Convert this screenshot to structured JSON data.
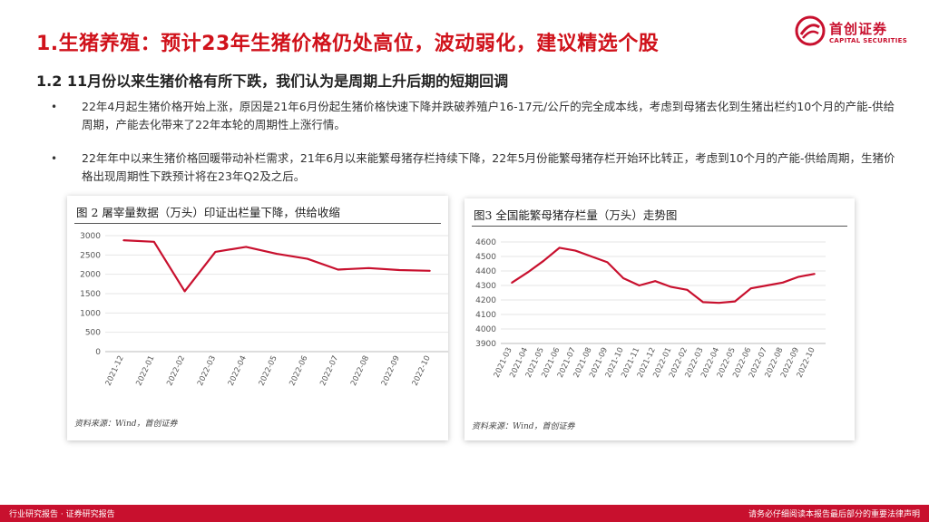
{
  "header": {
    "title": "1.生猪养殖：预计23年生猪价格仍处高位，波动弱化，建议精选个股",
    "subtitle": "1.2 11月份以来生猪价格有所下跌，我们认为是周期上升后期的短期回调"
  },
  "logo": {
    "name": "首创证券",
    "name_en": "CAPITAL SECURITIES",
    "icon": "capital-securities-logo",
    "color": "#c8102e"
  },
  "bullets": [
    {
      "marker": "•",
      "text": "22年4月起生猪价格开始上涨，原因是21年6月份起生猪价格快速下降并跌破养殖户16-17元/公斤的完全成本线，考虑到母猪去化到生猪出栏约10个月的产能-供给周期，产能去化带来了22年本轮的周期性上涨行情。"
    },
    {
      "marker": "•",
      "text": "22年年中以来生猪价格回暖带动补栏需求，21年6月以来能繁母猪存栏持续下降，22年5月份能繁母猪存栏开始环比转正，考虑到10个月的产能-供给周期，生猪价格出现周期性下跌预计将在23年Q2及之后。"
    }
  ],
  "chart_data": [
    {
      "type": "line",
      "title": "图 2 屠宰量数据（万头）印证出栏量下降，供给收缩",
      "source": "资料来源：Wind，首创证券",
      "categories": [
        "2021-12",
        "2022-01",
        "2022-02",
        "2022-03",
        "2022-04",
        "2022-05",
        "2022-06",
        "2022-07",
        "2022-08",
        "2022-09",
        "2022-10"
      ],
      "series": [
        {
          "values": [
            2880,
            2840,
            1560,
            2580,
            2710,
            2530,
            2400,
            2120,
            2160,
            2110,
            2090
          ]
        }
      ],
      "ylim": [
        0,
        3000
      ],
      "yticks": [
        0,
        500,
        1000,
        1500,
        2000,
        2500,
        3000
      ],
      "grid": true,
      "color": "#c8102e"
    },
    {
      "type": "line",
      "title": "图3 全国能繁母猪存栏量（万头）走势图",
      "source": "资料来源：Wind，首创证券",
      "categories": [
        "2021-03",
        "2021-04",
        "2021-05",
        "2021-06",
        "2021-07",
        "2021-08",
        "2021-09",
        "2021-10",
        "2021-11",
        "2021-12",
        "2022-01",
        "2022-02",
        "2022-03",
        "2022-04",
        "2022-05",
        "2022-06",
        "2022-07",
        "2022-08",
        "2022-09",
        "2022-10"
      ],
      "series": [
        {
          "values": [
            4318,
            4390,
            4470,
            4560,
            4540,
            4500,
            4460,
            4350,
            4300,
            4330,
            4290,
            4270,
            4185,
            4180,
            4190,
            4280,
            4300,
            4320,
            4360,
            4380
          ]
        }
      ],
      "ylim": [
        3900,
        4600
      ],
      "yticks": [
        3900,
        4000,
        4100,
        4200,
        4300,
        4400,
        4500,
        4600
      ],
      "grid": true,
      "color": "#c8102e"
    }
  ],
  "footer": {
    "left": "行业研究报告 · 证券研究报告",
    "right": "请务必仔细阅读本报告最后部分的重要法律声明"
  }
}
